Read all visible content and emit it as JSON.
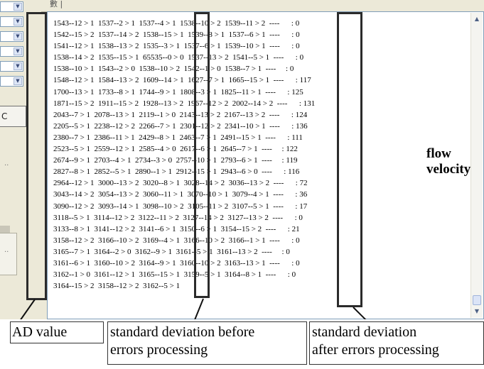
{
  "window": {
    "top_strip_text": "數 |"
  },
  "left_panel": {
    "button_label": "C",
    "dots": "··"
  },
  "log": {
    "lines": [
      "1543--12 > 1  1537--2 > 1  1537--4 > 1  1538--10 > 2  1539--11 > 2  ----      : 0",
      "1542--15 > 2  1537--14 > 2  1538--15 > 1  1539--8 > 1  1537--6 > 1  ----      : 0",
      "1541--12 > 1  1538--13 > 2  1535--3 > 1  1537--6 > 1  1539--10 > 1  ----      : 0",
      "1538--14 > 2  1535--15 > 1  65535--0 > 0  1537--13 > 2  1541--5 > 1  ----      : 0",
      "1538--10 > 1  1543--2 > 0  1538--10 > 2  1542--1 > 0  1538--7 > 1  ----     : 0",
      "1548--12 > 1  1584--13 > 2  1609--14 > 1  1627--7 > 1  1665--15 > 1  ----      : 117",
      "1700--13 > 1  1733--8 > 1  1744--9 > 1  1808--3 > 1  1825--11 > 1  ----      : 125",
      "1871--15 > 2  1911--15 > 2  1928--13 > 2  1967--12 > 2  2002--14 > 2  ----      : 131",
      "2043--7 > 1  2078--13 > 1  2119--1 > 0  2143--13 > 2  2167--13 > 2  ----      : 124",
      "2205--5 > 1  2238--12 > 2  2266--7 > 1  2301--12 > 2  2341--10 > 1  ----      : 136",
      "2380--7 > 1  2386--11 > 1  2429--8 > 1  2463--7 > 1  2491--15 > 1  ----      : 111",
      "2523--5 > 1  2559--12 > 1  2585--4 > 0  2617--6 > 1  2645--7 > 1  ----     : 122",
      "2674--9 > 1  2703--4 > 1  2734--3 > 0  2757--10 > 1  2793--6 > 1  ----     : 119",
      "2827--8 > 1  2852--5 > 1  2890--1 > 1  2912--15 > 1  2943--6 > 0  ----      : 116",
      "2964--12 > 1  3000--13 > 2  3020--8 > 1  3028--14 > 2  3036--13 > 2  ----      : 72",
      "3043--14 > 2  3054--13 > 2  3060--11 > 1  3070--10 > 1  3079--4 > 1  ----      : 36",
      "3090--12 > 2  3093--14 > 1  3098--10 > 2  3105--11 > 2  3107--5 > 1  ----      : 17",
      "3118--5 > 1  3114--12 > 2  3122--11 > 2  3127--14 > 2  3127--13 > 2  ----      : 0",
      "3133--8 > 1  3141--12 > 2  3141--6 > 1  3150--6 > 1  3154--15 > 2  ----      : 21",
      "3158--12 > 2  3166--10 > 2  3169--4 > 1  3166--10 > 2  3166--1 > 1  ----      : 0",
      "3165--7 > 1  3164--2 > 0  3162--9 > 1  3161--5 > 1  3161--13 > 2  ----     : 0",
      "3161--6 > 1  3160--10 > 2  3164--9 > 1  3160--10 > 2  3163--13 > 1  ----      : 0",
      "3162--1 > 0  3161--12 > 1  3165--15 > 1  3159--5 > 1  3164--8 > 1  ----      : 0",
      "3164--15 > 2  3158--12 > 2  3162--5 > 1"
    ]
  },
  "annotations": {
    "ad_value": "AD value",
    "std_before": "standard deviation before\nerrors processing",
    "std_after": "standard deviation\nafter errors processing",
    "flow_velocity": "flow\nvelocity"
  }
}
